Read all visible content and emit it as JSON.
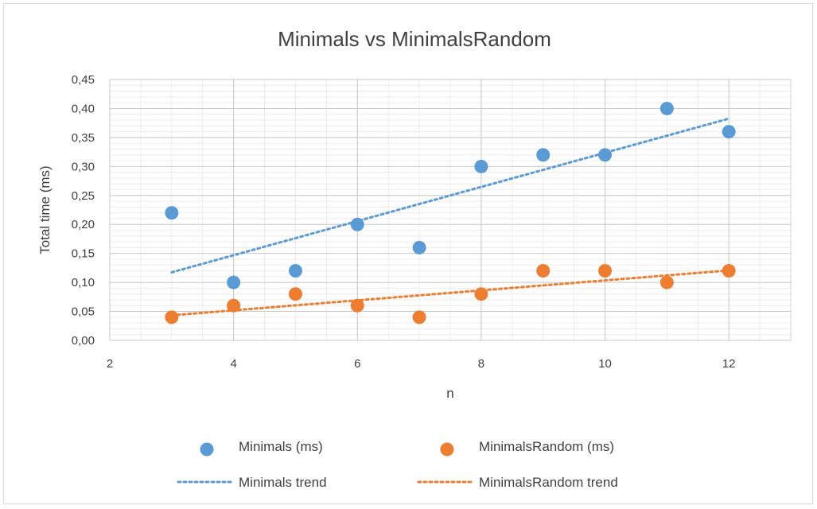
{
  "chart_data": {
    "type": "scatter",
    "title": "Minimals vs MinimalsRandom",
    "xlabel": "n",
    "ylabel": "Total time (ms)",
    "xlim": [
      2,
      13
    ],
    "ylim": [
      0,
      0.45
    ],
    "x_ticks": [
      "2",
      "4",
      "6",
      "8",
      "10",
      "12"
    ],
    "x_tick_values": [
      2,
      4,
      6,
      8,
      10,
      12
    ],
    "y_ticks": [
      "0,00",
      "0,05",
      "0,10",
      "0,15",
      "0,20",
      "0,25",
      "0,30",
      "0,35",
      "0,40",
      "0,45"
    ],
    "y_tick_values": [
      0,
      0.05,
      0.1,
      0.15,
      0.2,
      0.25,
      0.3,
      0.35,
      0.4,
      0.45
    ],
    "grid": true,
    "legend_position": "bottom",
    "series": [
      {
        "name": "Minimals (ms)",
        "color": "#5b9bd5",
        "x": [
          3,
          4,
          5,
          6,
          7,
          8,
          9,
          10,
          11,
          12
        ],
        "y": [
          0.22,
          0.1,
          0.12,
          0.2,
          0.16,
          0.3,
          0.32,
          0.32,
          0.4,
          0.36
        ]
      },
      {
        "name": "MinimalsRandom (ms)",
        "color": "#ed7d31",
        "x": [
          3,
          4,
          5,
          6,
          7,
          8,
          9,
          10,
          11,
          12
        ],
        "y": [
          0.04,
          0.06,
          0.08,
          0.06,
          0.04,
          0.08,
          0.12,
          0.12,
          0.1,
          0.12
        ]
      }
    ],
    "trendlines": [
      {
        "name": "Minimals trend",
        "color": "#5b9bd5",
        "type": "linear",
        "series_index": 0
      },
      {
        "name": "MinimalsRandom trend",
        "color": "#ed7d31",
        "type": "linear",
        "series_index": 1
      }
    ]
  }
}
